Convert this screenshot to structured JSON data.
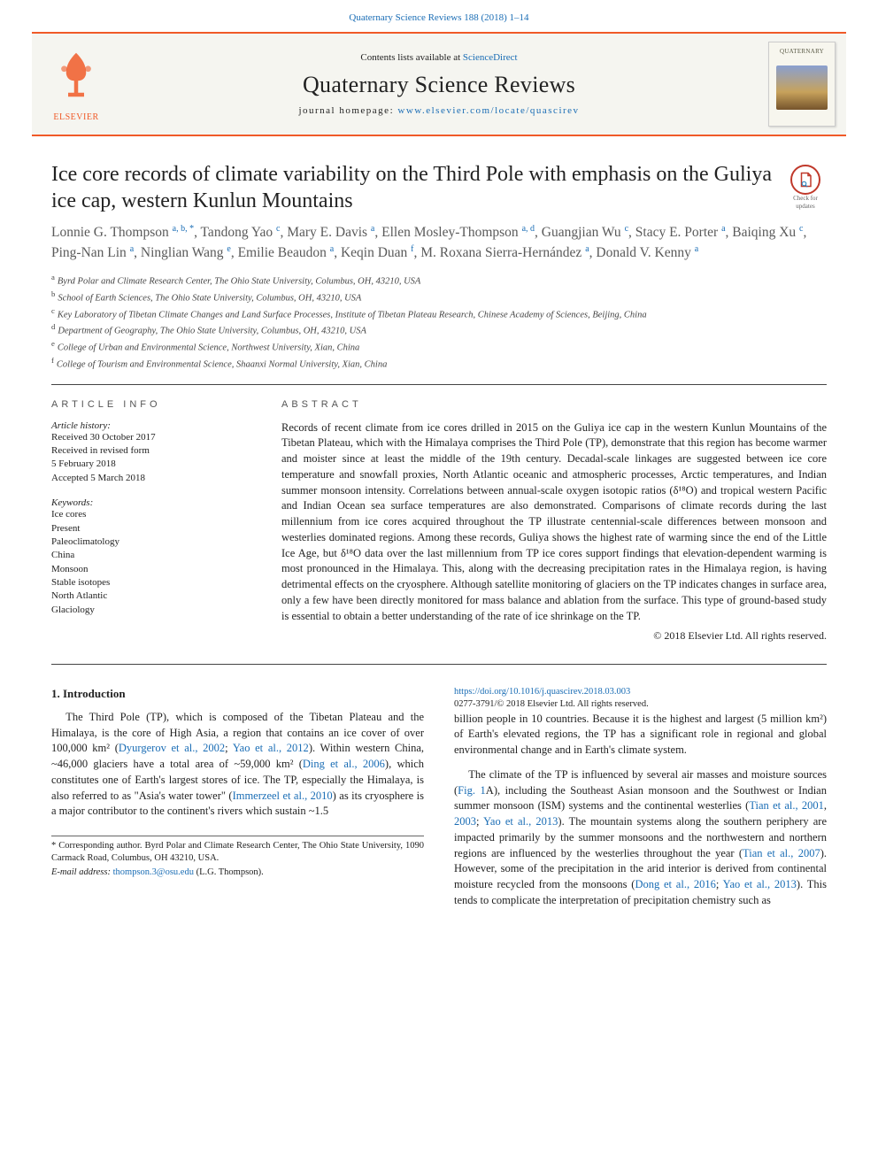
{
  "citation": {
    "journal": "Quaternary Science Reviews",
    "volpg": "188 (2018) 1–14"
  },
  "banner": {
    "sd_prefix": "Contents lists available at ",
    "sd_link": "ScienceDirect",
    "journal": "Quaternary Science Reviews",
    "home_prefix": "journal homepage: ",
    "home_url": "www.elsevier.com/locate/quascirev",
    "publisher": "ELSEVIER",
    "cover_title": "QUATERNARY"
  },
  "crossmark": {
    "l1": "Check for",
    "l2": "updates"
  },
  "title": "Ice core records of climate variability on the Third Pole with emphasis on the Guliya ice cap, western Kunlun Mountains",
  "authors_html": "Lonnie G. Thompson <sup><a>a</a>, <a>b</a>, <a>*</a></sup>, Tandong Yao <sup><a>c</a></sup>, Mary E. Davis <sup><a>a</a></sup>, Ellen Mosley-Thompson <sup><a>a</a>, <a>d</a></sup>, Guangjian Wu <sup><a>c</a></sup>, Stacy E. Porter <sup><a>a</a></sup>, Baiqing Xu <sup><a>c</a></sup>, Ping-Nan Lin <sup><a>a</a></sup>, Ninglian Wang <sup><a>e</a></sup>, Emilie Beaudon <sup><a>a</a></sup>, Keqin Duan <sup><a>f</a></sup>, M. Roxana Sierra-Hernández <sup><a>a</a></sup>, Donald V. Kenny <sup><a>a</a></sup>",
  "affiliations": [
    {
      "key": "a",
      "text": "Byrd Polar and Climate Research Center, The Ohio State University, Columbus, OH, 43210, USA"
    },
    {
      "key": "b",
      "text": "School of Earth Sciences, The Ohio State University, Columbus, OH, 43210, USA"
    },
    {
      "key": "c",
      "text": "Key Laboratory of Tibetan Climate Changes and Land Surface Processes, Institute of Tibetan Plateau Research, Chinese Academy of Sciences, Beijing, China"
    },
    {
      "key": "d",
      "text": "Department of Geography, The Ohio State University, Columbus, OH, 43210, USA"
    },
    {
      "key": "e",
      "text": "College of Urban and Environmental Science, Northwest University, Xian, China"
    },
    {
      "key": "f",
      "text": "College of Tourism and Environmental Science, Shaanxi Normal University, Xian, China"
    }
  ],
  "artinfo": {
    "head": "ARTICLE INFO",
    "hist_label": "Article history:",
    "hist": [
      "Received 30 October 2017",
      "Received in revised form",
      "5 February 2018",
      "Accepted 5 March 2018"
    ],
    "kw_label": "Keywords:",
    "keywords": [
      "Ice cores",
      "Present",
      "Paleoclimatology",
      "China",
      "Monsoon",
      "Stable isotopes",
      "North Atlantic",
      "Glaciology"
    ]
  },
  "abstract": {
    "head": "ABSTRACT",
    "text": "Records of recent climate from ice cores drilled in 2015 on the Guliya ice cap in the western Kunlun Mountains of the Tibetan Plateau, which with the Himalaya comprises the Third Pole (TP), demonstrate that this region has become warmer and moister since at least the middle of the 19th century. Decadal-scale linkages are suggested between ice core temperature and snowfall proxies, North Atlantic oceanic and atmospheric processes, Arctic temperatures, and Indian summer monsoon intensity. Correlations between annual-scale oxygen isotopic ratios (δ¹⁸O) and tropical western Pacific and Indian Ocean sea surface temperatures are also demonstrated. Comparisons of climate records during the last millennium from ice cores acquired throughout the TP illustrate centennial-scale differences between monsoon and westerlies dominated regions. Among these records, Guliya shows the highest rate of warming since the end of the Little Ice Age, but δ¹⁸O data over the last millennium from TP ice cores support findings that elevation-dependent warming is most pronounced in the Himalaya. This, along with the decreasing precipitation rates in the Himalaya region, is having detrimental effects on the cryosphere. Although satellite monitoring of glaciers on the TP indicates changes in surface area, only a few have been directly monitored for mass balance and ablation from the surface. This type of ground-based study is essential to obtain a better understanding of the rate of ice shrinkage on the TP.",
    "copyright": "© 2018 Elsevier Ltd. All rights reserved."
  },
  "intro": {
    "head": "1. Introduction",
    "p1_a": "The Third Pole (TP), which is composed of the Tibetan Plateau and the Himalaya, is the core of High Asia, a region that contains an ice cover of over 100,000 km² (",
    "p1_l1": "Dyurgerov et al., 2002",
    "p1_b": "; ",
    "p1_l2": "Yao et al., 2012",
    "p1_c": "). Within western China, ~46,000 glaciers have a total area of ~59,000 km² (",
    "p1_l3": "Ding et al., 2006",
    "p1_d": "), which constitutes one of Earth's largest stores of ice. The TP, especially the Himalaya, is also referred to as \"Asia's water tower\" (",
    "p1_l4": "Immerzeel et al., 2010",
    "p1_e": ") as its cryosphere is a major contributor to the continent's rivers which sustain ~1.5",
    "p2": "billion people in 10 countries. Because it is the highest and largest (5 million km²) of Earth's elevated regions, the TP has a significant role in regional and global environmental change and in Earth's climate system.",
    "p3_a": "The climate of the TP is influenced by several air masses and moisture sources (",
    "p3_l1": "Fig. 1",
    "p3_b": "A), including the Southeast Asian monsoon and the Southwest or Indian summer monsoon (ISM) systems and the continental westerlies (",
    "p3_l2": "Tian et al., 2001",
    "p3_c": ", ",
    "p3_l3": "2003",
    "p3_d": "; ",
    "p3_l4": "Yao et al., 2013",
    "p3_e": "). The mountain systems along the southern periphery are impacted primarily by the summer monsoons and the northwestern and northern regions are influenced by the westerlies throughout the year (",
    "p3_l5": "Tian et al., 2007",
    "p3_f": "). However, some of the precipitation in the arid interior is derived from continental moisture recycled from the monsoons (",
    "p3_l6": "Dong et al., 2016",
    "p3_g": "; ",
    "p3_l7": "Yao et al., 2013",
    "p3_h": "). This tends to complicate the interpretation of precipitation chemistry such as"
  },
  "corr": {
    "note": "* Corresponding author. Byrd Polar and Climate Research Center, The Ohio State University, 1090 Carmack Road, Columbus, OH 43210, USA.",
    "email_label": "E-mail address: ",
    "email": "thompson.3@osu.edu",
    "email_after": " (L.G. Thompson)."
  },
  "doi": {
    "link": "https://doi.org/10.1016/j.quascirev.2018.03.003",
    "issn": "0277-3791/© 2018 Elsevier Ltd. All rights reserved."
  },
  "colors": {
    "accent": "#f05a28",
    "link": "#1a6db5",
    "text": "#222222"
  }
}
